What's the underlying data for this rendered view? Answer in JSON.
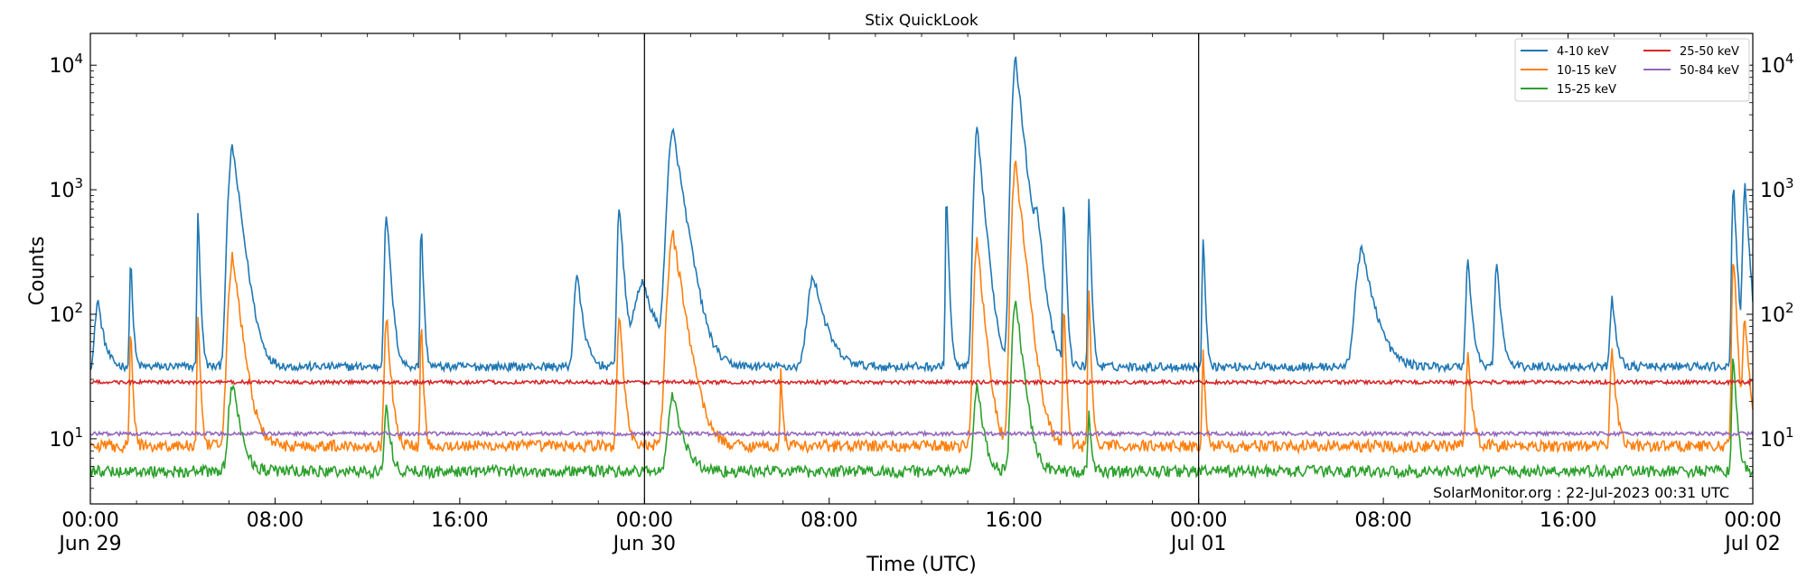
{
  "chart_data": {
    "type": "line",
    "title": "Stix QuickLook",
    "xlabel": "Time (UTC)",
    "ylabel": "Counts",
    "yscale": "log",
    "ylim": [
      3,
      18000
    ],
    "xlim": [
      "2023-06-29 00:00",
      "2023-07-02 00:00"
    ],
    "x_ticks": [
      {
        "time": "2023-06-29 00:00",
        "label": [
          "00:00",
          "Jun 29"
        ]
      },
      {
        "time": "2023-06-29 08:00",
        "label": [
          "08:00"
        ]
      },
      {
        "time": "2023-06-29 16:00",
        "label": [
          "16:00"
        ]
      },
      {
        "time": "2023-06-30 00:00",
        "label": [
          "00:00",
          "Jun 30"
        ]
      },
      {
        "time": "2023-06-30 08:00",
        "label": [
          "08:00"
        ]
      },
      {
        "time": "2023-06-30 16:00",
        "label": [
          "16:00"
        ]
      },
      {
        "time": "2023-07-01 00:00",
        "label": [
          "00:00",
          "Jul 01"
        ]
      },
      {
        "time": "2023-07-01 08:00",
        "label": [
          "08:00"
        ]
      },
      {
        "time": "2023-07-01 16:00",
        "label": [
          "16:00"
        ]
      },
      {
        "time": "2023-07-02 00:00",
        "label": [
          "00:00",
          "Jul 02"
        ]
      }
    ],
    "y_ticks": [
      {
        "value": 10,
        "base": "10",
        "exp": "1"
      },
      {
        "value": 100,
        "base": "10",
        "exp": "2"
      },
      {
        "value": 1000,
        "base": "10",
        "exp": "3"
      },
      {
        "value": 10000,
        "base": "10",
        "exp": "4"
      }
    ],
    "day_boundaries": [
      "2023-06-30 00:00",
      "2023-07-01 00:00"
    ],
    "legend_placement": "top-right",
    "credit": "SolarMonitor.org : 22-Jul-2023 00:31 UTC",
    "series": [
      {
        "name": "4-10 keV",
        "color": "#1f77b4",
        "baseline": 38,
        "peaks": [
          [
            "2023-06-29 00:20",
            130,
            0.3
          ],
          [
            "2023-06-29 01:45",
            300,
            0.1
          ],
          [
            "2023-06-29 04:40",
            650,
            0.1
          ],
          [
            "2023-06-29 06:10",
            2200,
            0.4
          ],
          [
            "2023-06-29 12:50",
            650,
            0.2
          ],
          [
            "2023-06-29 14:20",
            550,
            0.1
          ],
          [
            "2023-06-29 21:05",
            210,
            0.3
          ],
          [
            "2023-06-29 22:55",
            750,
            0.2
          ],
          [
            "2023-06-29 23:55",
            180,
            0.8
          ],
          [
            "2023-06-30 01:15",
            2900,
            0.5
          ],
          [
            "2023-06-30 07:20",
            200,
            0.6
          ],
          [
            "2023-06-30 13:05",
            950,
            0.1
          ],
          [
            "2023-06-30 14:25",
            3000,
            0.3
          ],
          [
            "2023-06-30 16:05",
            11000,
            0.35
          ],
          [
            "2023-06-30 17:00",
            500,
            0.3
          ],
          [
            "2023-06-30 18:10",
            900,
            0.1
          ],
          [
            "2023-06-30 19:15",
            850,
            0.1
          ],
          [
            "2023-07-01 00:12",
            430,
            0.1
          ],
          [
            "2023-07-01 07:05",
            330,
            0.6
          ],
          [
            "2023-07-01 11:40",
            270,
            0.2
          ],
          [
            "2023-07-01 12:55",
            260,
            0.2
          ],
          [
            "2023-07-01 17:55",
            140,
            0.2
          ],
          [
            "2023-07-01 23:10",
            1100,
            0.15
          ],
          [
            "2023-07-01 23:40",
            1050,
            0.2
          ]
        ]
      },
      {
        "name": "10-15 keV",
        "color": "#ff7f0e",
        "baseline": 8.8,
        "peaks": [
          [
            "2023-06-29 01:45",
            80,
            0.1
          ],
          [
            "2023-06-29 04:40",
            100,
            0.1
          ],
          [
            "2023-06-29 06:10",
            290,
            0.4
          ],
          [
            "2023-06-29 12:50",
            100,
            0.2
          ],
          [
            "2023-06-29 14:20",
            90,
            0.1
          ],
          [
            "2023-06-29 22:55",
            100,
            0.2
          ],
          [
            "2023-06-30 01:15",
            430,
            0.5
          ],
          [
            "2023-06-30 05:55",
            35,
            0.1
          ],
          [
            "2023-06-30 14:25",
            390,
            0.3
          ],
          [
            "2023-06-30 16:05",
            1600,
            0.35
          ],
          [
            "2023-06-30 18:10",
            125,
            0.1
          ],
          [
            "2023-06-30 19:15",
            155,
            0.1
          ],
          [
            "2023-07-01 00:12",
            55,
            0.1
          ],
          [
            "2023-07-01 11:40",
            45,
            0.2
          ],
          [
            "2023-07-01 17:55",
            50,
            0.2
          ],
          [
            "2023-07-01 23:10",
            310,
            0.15
          ],
          [
            "2023-07-01 23:40",
            95,
            0.2
          ]
        ]
      },
      {
        "name": "15-25 keV",
        "color": "#2ca02c",
        "baseline": 5.5,
        "peaks": [
          [
            "2023-06-29 06:10",
            28,
            0.4
          ],
          [
            "2023-06-29 12:50",
            20,
            0.2
          ],
          [
            "2023-06-30 01:15",
            22,
            0.5
          ],
          [
            "2023-06-30 14:25",
            28,
            0.3
          ],
          [
            "2023-06-30 16:05",
            130,
            0.35
          ],
          [
            "2023-06-30 19:15",
            18,
            0.1
          ],
          [
            "2023-07-01 23:10",
            50,
            0.15
          ]
        ]
      },
      {
        "name": "25-50 keV",
        "color": "#d62728",
        "baseline": 28.5,
        "peaks": []
      },
      {
        "name": "50-84 keV",
        "color": "#9467bd",
        "baseline": 11,
        "peaks": []
      }
    ]
  }
}
